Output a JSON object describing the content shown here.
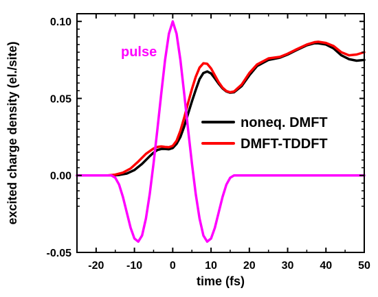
{
  "chart_data": {
    "type": "line",
    "title": "",
    "xlabel": "time (fs)",
    "ylabel": "excited charge density (el./site)",
    "xlim": [
      -25,
      50
    ],
    "ylim": [
      -0.05,
      0.105
    ],
    "x_ticks": [
      -20,
      -10,
      0,
      10,
      20,
      30,
      40,
      50
    ],
    "y_ticks": [
      -0.05,
      0.0,
      0.05,
      0.1
    ],
    "x_tick_labels": [
      "-20",
      "-10",
      "0",
      "10",
      "20",
      "30",
      "40",
      "50"
    ],
    "y_tick_labels": [
      "-0.05",
      "0.00",
      "0.05",
      "0.10"
    ],
    "grid": false,
    "legend": {
      "position": "right-middle"
    },
    "series": [
      {
        "name": "noneq. DMFT",
        "color": "#000000",
        "x": [
          -25,
          -16,
          -14,
          -12,
          -10,
          -8,
          -6,
          -5,
          -4,
          -3,
          -2,
          -1,
          0,
          1,
          2,
          3,
          4,
          5,
          6,
          7,
          8,
          9,
          10,
          11,
          12,
          13,
          14,
          15,
          16,
          18,
          20,
          22,
          25,
          28,
          30,
          32,
          35,
          37,
          38,
          40,
          42,
          44,
          46,
          48,
          50
        ],
        "y": [
          0,
          0,
          0.0003,
          0.0012,
          0.0035,
          0.0075,
          0.0125,
          0.0148,
          0.0165,
          0.0172,
          0.0172,
          0.017,
          0.0178,
          0.0205,
          0.025,
          0.0318,
          0.04,
          0.048,
          0.0555,
          0.0625,
          0.0665,
          0.0675,
          0.0662,
          0.063,
          0.0595,
          0.0565,
          0.0545,
          0.0537,
          0.054,
          0.058,
          0.065,
          0.071,
          0.075,
          0.0765,
          0.0785,
          0.081,
          0.0845,
          0.0858,
          0.0858,
          0.085,
          0.0825,
          0.078,
          0.0755,
          0.0745,
          0.075
        ]
      },
      {
        "name": "DMFT-TDDFT",
        "color": "#ff0000",
        "x": [
          -25,
          -17,
          -15,
          -13,
          -11,
          -9,
          -7,
          -5,
          -4,
          -3,
          -2,
          -1,
          0,
          1,
          2,
          3,
          4,
          5,
          6,
          7,
          8,
          9,
          10,
          11,
          12,
          13,
          14,
          15,
          16,
          18,
          20,
          22,
          25,
          28,
          30,
          32,
          35,
          37,
          38,
          40,
          42,
          44,
          46,
          48,
          50
        ],
        "y": [
          0,
          0,
          0.0005,
          0.0018,
          0.0045,
          0.009,
          0.014,
          0.0175,
          0.0185,
          0.0188,
          0.0185,
          0.0183,
          0.0192,
          0.0225,
          0.029,
          0.0375,
          0.047,
          0.056,
          0.064,
          0.07,
          0.0728,
          0.0725,
          0.0695,
          0.065,
          0.0605,
          0.057,
          0.0548,
          0.054,
          0.0545,
          0.059,
          0.0665,
          0.072,
          0.076,
          0.077,
          0.079,
          0.0815,
          0.085,
          0.0865,
          0.0868,
          0.086,
          0.084,
          0.08,
          0.078,
          0.0785,
          0.08
        ]
      },
      {
        "name": "pulse",
        "color": "#ff00ff",
        "x": [
          -25,
          -16,
          -15,
          -14,
          -13,
          -12,
          -11,
          -10,
          -9,
          -8,
          -7,
          -6,
          -5,
          -4,
          -3,
          -2,
          -1,
          0,
          1,
          2,
          3,
          4,
          5,
          6,
          7,
          8,
          9,
          10,
          11,
          12,
          13,
          14,
          15,
          16,
          50
        ],
        "y": [
          0,
          0,
          -0.0015,
          -0.006,
          -0.014,
          -0.024,
          -0.034,
          -0.041,
          -0.043,
          -0.039,
          -0.028,
          -0.012,
          0.008,
          0.03,
          0.053,
          0.075,
          0.092,
          0.1,
          0.092,
          0.075,
          0.053,
          0.03,
          0.008,
          -0.012,
          -0.028,
          -0.039,
          -0.043,
          -0.041,
          -0.034,
          -0.024,
          -0.014,
          -0.006,
          -0.0015,
          0,
          0
        ]
      }
    ],
    "annotations": [
      {
        "text": "pulse",
        "color": "#ff00ff"
      }
    ]
  }
}
